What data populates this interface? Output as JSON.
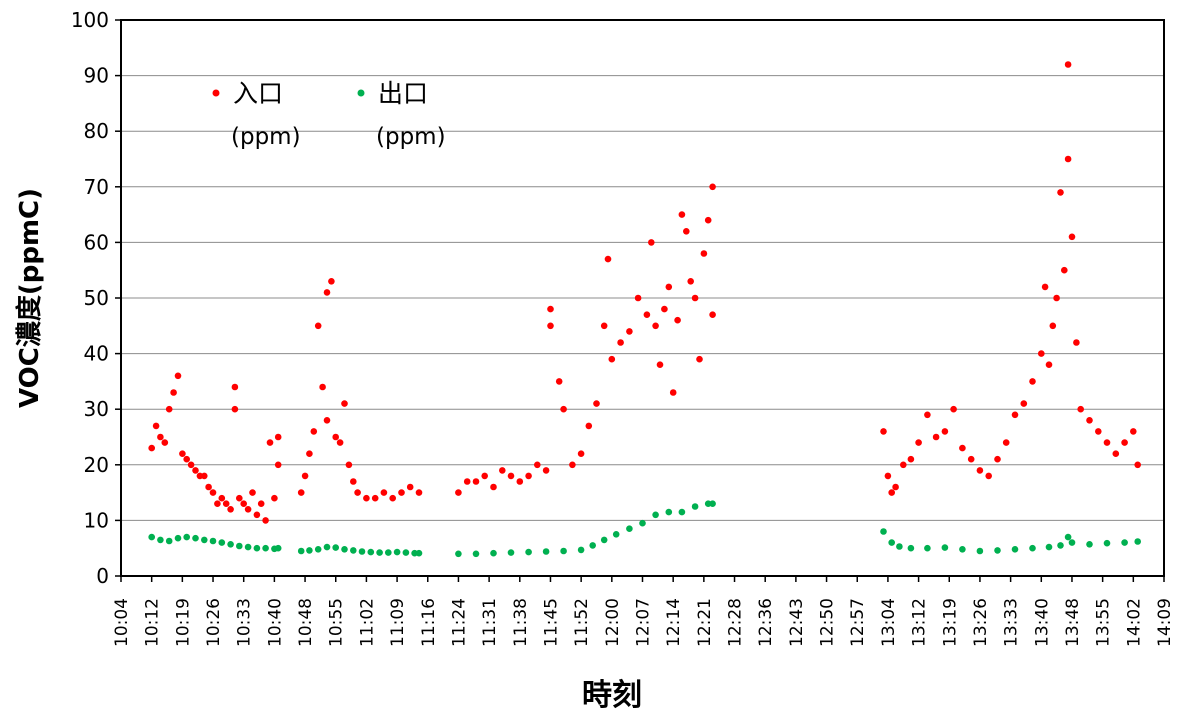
{
  "chart_data": {
    "type": "scatter",
    "title": "",
    "xlabel": "時刻",
    "ylabel": "VOC濃度(ppmC)",
    "ylim": [
      0,
      100
    ],
    "yticks": [
      0,
      10,
      20,
      30,
      40,
      50,
      60,
      70,
      80,
      90,
      100
    ],
    "xticks": [
      "10:04",
      "10:12",
      "10:19",
      "10:26",
      "10:33",
      "10:40",
      "10:48",
      "10:55",
      "11:02",
      "11:09",
      "11:16",
      "11:24",
      "11:31",
      "11:38",
      "11:45",
      "11:52",
      "12:00",
      "12:07",
      "12:14",
      "12:21",
      "12:28",
      "12:36",
      "12:43",
      "12:50",
      "12:57",
      "13:04",
      "13:12",
      "13:19",
      "13:26",
      "13:33",
      "13:40",
      "13:48",
      "13:55",
      "14:02",
      "14:09"
    ],
    "grid": "horizontal",
    "legend_position": "top-left",
    "series": [
      {
        "name": "入口",
        "unit": "(ppm)",
        "color": "#ff0000",
        "points": [
          [
            "10:12",
            23
          ],
          [
            "10:13",
            27
          ],
          [
            "10:14",
            25
          ],
          [
            "10:15",
            24
          ],
          [
            "10:16",
            30
          ],
          [
            "10:17",
            33
          ],
          [
            "10:18",
            36
          ],
          [
            "10:19",
            22
          ],
          [
            "10:20",
            21
          ],
          [
            "10:21",
            20
          ],
          [
            "10:22",
            19
          ],
          [
            "10:23",
            18
          ],
          [
            "10:24",
            18
          ],
          [
            "10:25",
            16
          ],
          [
            "10:26",
            15
          ],
          [
            "10:27",
            13
          ],
          [
            "10:28",
            14
          ],
          [
            "10:29",
            13
          ],
          [
            "10:30",
            12
          ],
          [
            "10:31",
            34
          ],
          [
            "10:31",
            30
          ],
          [
            "10:32",
            14
          ],
          [
            "10:33",
            13
          ],
          [
            "10:34",
            12
          ],
          [
            "10:35",
            15
          ],
          [
            "10:36",
            11
          ],
          [
            "10:37",
            13
          ],
          [
            "10:38",
            10
          ],
          [
            "10:39",
            24
          ],
          [
            "10:40",
            14
          ],
          [
            "10:41",
            20
          ],
          [
            "10:41",
            25
          ],
          [
            "10:47",
            15
          ],
          [
            "10:48",
            18
          ],
          [
            "10:49",
            22
          ],
          [
            "10:50",
            26
          ],
          [
            "10:51",
            45
          ],
          [
            "10:52",
            34
          ],
          [
            "10:53",
            28
          ],
          [
            "10:53",
            51
          ],
          [
            "10:54",
            53
          ],
          [
            "10:55",
            25
          ],
          [
            "10:56",
            24
          ],
          [
            "10:57",
            31
          ],
          [
            "10:58",
            20
          ],
          [
            "10:59",
            17
          ],
          [
            "11:00",
            15
          ],
          [
            "11:02",
            14
          ],
          [
            "11:04",
            14
          ],
          [
            "11:06",
            15
          ],
          [
            "11:08",
            14
          ],
          [
            "11:10",
            15
          ],
          [
            "11:12",
            16
          ],
          [
            "11:14",
            15
          ],
          [
            "11:24",
            15
          ],
          [
            "11:26",
            17
          ],
          [
            "11:28",
            17
          ],
          [
            "11:30",
            18
          ],
          [
            "11:32",
            16
          ],
          [
            "11:34",
            19
          ],
          [
            "11:36",
            18
          ],
          [
            "11:38",
            17
          ],
          [
            "11:40",
            18
          ],
          [
            "11:42",
            20
          ],
          [
            "11:44",
            19
          ],
          [
            "11:45",
            48
          ],
          [
            "11:45",
            45
          ],
          [
            "11:47",
            35
          ],
          [
            "11:48",
            30
          ],
          [
            "11:50",
            20
          ],
          [
            "11:52",
            22
          ],
          [
            "11:54",
            27
          ],
          [
            "11:56",
            31
          ],
          [
            "11:58",
            45
          ],
          [
            "11:59",
            57
          ],
          [
            "12:00",
            39
          ],
          [
            "12:02",
            42
          ],
          [
            "12:04",
            44
          ],
          [
            "12:06",
            50
          ],
          [
            "12:08",
            47
          ],
          [
            "12:09",
            60
          ],
          [
            "12:10",
            45
          ],
          [
            "12:11",
            38
          ],
          [
            "12:12",
            48
          ],
          [
            "12:13",
            52
          ],
          [
            "12:14",
            33
          ],
          [
            "12:15",
            46
          ],
          [
            "12:16",
            65
          ],
          [
            "12:17",
            62
          ],
          [
            "12:18",
            53
          ],
          [
            "12:19",
            50
          ],
          [
            "12:20",
            39
          ],
          [
            "12:21",
            58
          ],
          [
            "12:22",
            64
          ],
          [
            "12:23",
            70
          ],
          [
            "12:23",
            47
          ],
          [
            "13:03",
            26
          ],
          [
            "13:04",
            18
          ],
          [
            "13:05",
            15
          ],
          [
            "13:06",
            16
          ],
          [
            "13:08",
            20
          ],
          [
            "13:10",
            21
          ],
          [
            "13:12",
            24
          ],
          [
            "13:14",
            29
          ],
          [
            "13:16",
            25
          ],
          [
            "13:18",
            26
          ],
          [
            "13:20",
            30
          ],
          [
            "13:22",
            23
          ],
          [
            "13:24",
            21
          ],
          [
            "13:26",
            19
          ],
          [
            "13:28",
            18
          ],
          [
            "13:30",
            21
          ],
          [
            "13:32",
            24
          ],
          [
            "13:34",
            29
          ],
          [
            "13:36",
            31
          ],
          [
            "13:38",
            35
          ],
          [
            "13:40",
            40
          ],
          [
            "13:41",
            52
          ],
          [
            "13:42",
            38
          ],
          [
            "13:43",
            45
          ],
          [
            "13:44",
            50
          ],
          [
            "13:45",
            69
          ],
          [
            "13:46",
            55
          ],
          [
            "13:47",
            92
          ],
          [
            "13:47",
            75
          ],
          [
            "13:48",
            61
          ],
          [
            "13:49",
            42
          ],
          [
            "13:50",
            30
          ],
          [
            "13:52",
            28
          ],
          [
            "13:54",
            26
          ],
          [
            "13:56",
            24
          ],
          [
            "13:58",
            22
          ],
          [
            "14:00",
            24
          ],
          [
            "14:02",
            26
          ],
          [
            "14:03",
            20
          ]
        ]
      },
      {
        "name": "出口",
        "unit": "(ppm)",
        "color": "#00b050",
        "points": [
          [
            "10:12",
            7
          ],
          [
            "10:14",
            6.5
          ],
          [
            "10:16",
            6.3
          ],
          [
            "10:18",
            6.8
          ],
          [
            "10:20",
            7
          ],
          [
            "10:22",
            6.8
          ],
          [
            "10:24",
            6.5
          ],
          [
            "10:26",
            6.3
          ],
          [
            "10:28",
            6
          ],
          [
            "10:30",
            5.7
          ],
          [
            "10:32",
            5.4
          ],
          [
            "10:34",
            5.2
          ],
          [
            "10:36",
            5
          ],
          [
            "10:38",
            5
          ],
          [
            "10:40",
            4.9
          ],
          [
            "10:41",
            5
          ],
          [
            "10:47",
            4.5
          ],
          [
            "10:49",
            4.6
          ],
          [
            "10:51",
            4.8
          ],
          [
            "10:53",
            5.2
          ],
          [
            "10:55",
            5.1
          ],
          [
            "10:57",
            4.8
          ],
          [
            "10:59",
            4.6
          ],
          [
            "11:01",
            4.4
          ],
          [
            "11:03",
            4.3
          ],
          [
            "11:05",
            4.2
          ],
          [
            "11:07",
            4.2
          ],
          [
            "11:09",
            4.3
          ],
          [
            "11:11",
            4.2
          ],
          [
            "11:13",
            4.1
          ],
          [
            "11:14",
            4.1
          ],
          [
            "11:24",
            4
          ],
          [
            "11:28",
            4
          ],
          [
            "11:32",
            4.1
          ],
          [
            "11:36",
            4.2
          ],
          [
            "11:40",
            4.3
          ],
          [
            "11:44",
            4.4
          ],
          [
            "11:48",
            4.5
          ],
          [
            "11:52",
            4.7
          ],
          [
            "11:55",
            5.5
          ],
          [
            "11:58",
            6.5
          ],
          [
            "12:01",
            7.5
          ],
          [
            "12:04",
            8.5
          ],
          [
            "12:07",
            9.5
          ],
          [
            "12:10",
            11
          ],
          [
            "12:13",
            11.5
          ],
          [
            "12:16",
            11.5
          ],
          [
            "12:19",
            12.5
          ],
          [
            "12:22",
            13
          ],
          [
            "12:23",
            13
          ],
          [
            "13:03",
            8
          ],
          [
            "13:05",
            6
          ],
          [
            "13:07",
            5.3
          ],
          [
            "13:10",
            5
          ],
          [
            "13:14",
            5
          ],
          [
            "13:18",
            5.1
          ],
          [
            "13:22",
            4.8
          ],
          [
            "13:26",
            4.5
          ],
          [
            "13:30",
            4.6
          ],
          [
            "13:34",
            4.8
          ],
          [
            "13:38",
            5
          ],
          [
            "13:42",
            5.2
          ],
          [
            "13:45",
            5.5
          ],
          [
            "13:47",
            7
          ],
          [
            "13:48",
            6
          ],
          [
            "13:52",
            5.7
          ],
          [
            "13:56",
            5.9
          ],
          [
            "14:00",
            6
          ],
          [
            "14:03",
            6.2
          ]
        ]
      }
    ]
  }
}
